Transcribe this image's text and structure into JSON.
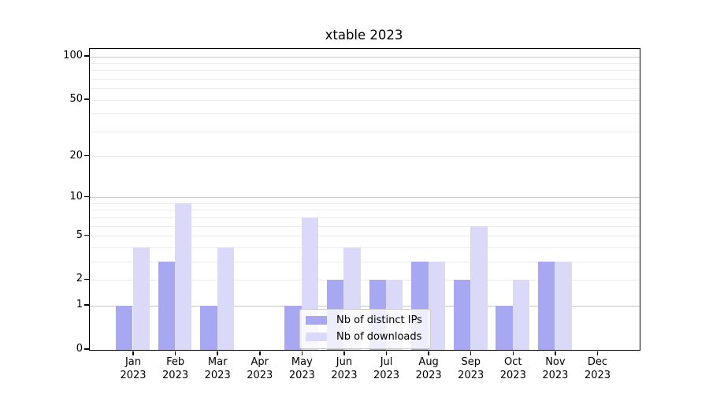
{
  "figure": {
    "title": "xtable 2023"
  },
  "chart_data": {
    "type": "bar",
    "title": "xtable 2023",
    "categories": [
      "Jan 2023",
      "Feb 2023",
      "Mar 2023",
      "Apr 2023",
      "May 2023",
      "Jun 2023",
      "Jul 2023",
      "Aug 2023",
      "Sep 2023",
      "Oct 2023",
      "Nov 2023",
      "Dec 2023"
    ],
    "series": [
      {
        "name": "Nb of distinct IPs",
        "color": "#a8a8f2",
        "values": [
          1,
          3,
          1,
          0,
          1,
          2,
          2,
          3,
          2,
          1,
          3,
          0
        ]
      },
      {
        "name": "Nb of downloads",
        "color": "#dadaf8",
        "values": [
          4,
          9,
          4,
          0,
          7,
          4,
          2,
          3,
          6,
          2,
          3,
          0
        ]
      }
    ],
    "xlabel": "",
    "ylabel": "",
    "yscale": "log1p",
    "ytick_values": [
      0,
      1,
      2,
      5,
      10,
      20,
      50,
      100
    ],
    "ytick_labels": [
      "0",
      "1",
      "2",
      "5",
      "10",
      "20",
      "50",
      "100"
    ],
    "ylim": [
      0,
      114
    ],
    "grid": "horizontal major+minor",
    "legend_position": "inside lower-center"
  },
  "colors": {
    "major_grid": "#c6c6c6",
    "minor_grid": "#ececec",
    "axis": "#000000",
    "legend_border": "#cbcbcb"
  }
}
